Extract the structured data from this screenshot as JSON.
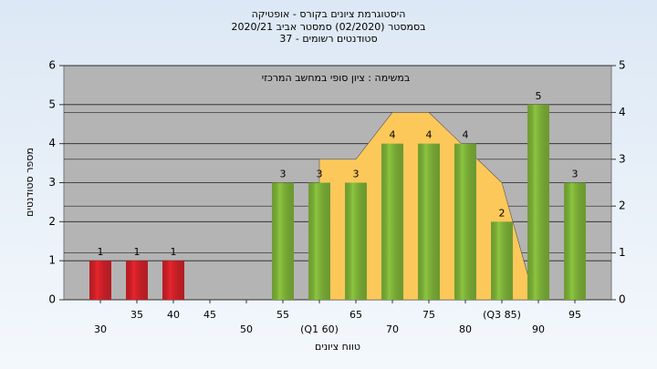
{
  "chart_data": {
    "type": "bar",
    "title": "היסטוגרמת ציונים בקורס - אופטיקה",
    "subtitle": [
      "בסמסטר  (02/2020)  סמסטר אביב 2020/21",
      "סטודנטים רשומים - 37"
    ],
    "annotation": "במשימה : ציון סופי במחשב המרכזי",
    "ylabel": "מספר סטודנטים",
    "xlabel": "טווח ציונים",
    "x": [
      30,
      35,
      40,
      45,
      50,
      55,
      60,
      65,
      70,
      75,
      80,
      85,
      90,
      95
    ],
    "values": [
      1,
      1,
      1,
      null,
      null,
      3,
      3,
      3,
      4,
      4,
      4,
      2,
      5,
      3
    ],
    "colors": [
      "#e8252d",
      "#e8252d",
      "#e8252d",
      "#e8252d",
      "#e8252d",
      "#8cc63f",
      "#8cc63f",
      "#8cc63f",
      "#8cc63f",
      "#8cc63f",
      "#8cc63f",
      "#8cc63f",
      "#8cc63f",
      "#8cc63f"
    ],
    "area": {
      "color": "#fcc85a",
      "axis": "y2",
      "x": [
        60,
        65,
        70,
        75,
        85,
        89.5
      ],
      "values": [
        3,
        3,
        4,
        4,
        2.5,
        0
      ]
    },
    "xlim": [
      25,
      100
    ],
    "xticks": [
      30,
      35,
      40,
      45,
      50,
      55,
      {
        "value": 60,
        "label": "(Q1 60)"
      },
      65,
      70,
      75,
      80,
      {
        "value": 85,
        "label": "(Q3 85)"
      },
      90,
      95
    ],
    "ylim": [
      0,
      6
    ],
    "yticks": [
      0,
      1,
      2,
      3,
      4,
      5,
      6
    ],
    "y2lim": [
      0,
      5
    ],
    "y2ticks": [
      0,
      1,
      2,
      3,
      4,
      5
    ],
    "grid": true
  }
}
